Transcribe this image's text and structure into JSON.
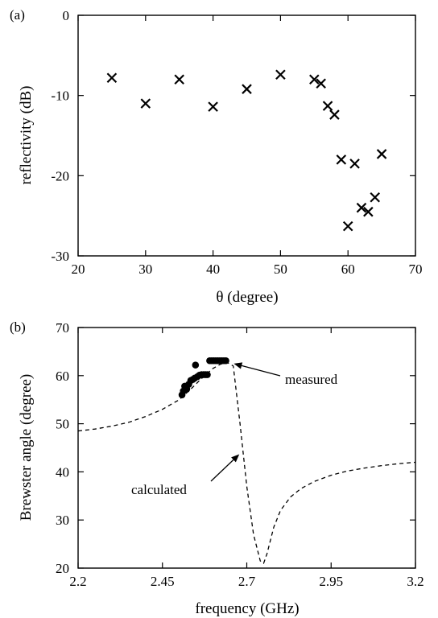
{
  "chart_data": [
    {
      "type": "scatter",
      "panel_label": "(a)",
      "xlabel": "θ  (degree)",
      "ylabel": "reflectivity (dB)",
      "xlim": [
        20,
        70
      ],
      "ylim": [
        -30,
        0
      ],
      "xticks": [
        "20",
        "30",
        "40",
        "50",
        "60",
        "70"
      ],
      "yticks": [
        "0",
        "-10",
        "-20",
        "-30"
      ],
      "marker": "x",
      "grid": false,
      "points": [
        {
          "x": 25,
          "y": -7.8
        },
        {
          "x": 30,
          "y": -11.0
        },
        {
          "x": 35,
          "y": -8.0
        },
        {
          "x": 40,
          "y": -11.4
        },
        {
          "x": 45,
          "y": -9.2
        },
        {
          "x": 50,
          "y": -7.4
        },
        {
          "x": 55,
          "y": -8.0
        },
        {
          "x": 56,
          "y": -8.5
        },
        {
          "x": 57,
          "y": -11.3
        },
        {
          "x": 58,
          "y": -12.4
        },
        {
          "x": 59,
          "y": -18.0
        },
        {
          "x": 60,
          "y": -26.3
        },
        {
          "x": 61,
          "y": -18.5
        },
        {
          "x": 62,
          "y": -24.0
        },
        {
          "x": 63,
          "y": -24.5
        },
        {
          "x": 64,
          "y": -22.7
        },
        {
          "x": 65,
          "y": -17.3
        }
      ]
    },
    {
      "type": "line",
      "panel_label": "(b)",
      "xlabel": "frequency (GHz)",
      "ylabel": "Brewster angle (degree)",
      "xlim": [
        2.2,
        3.2
      ],
      "ylim": [
        20,
        70
      ],
      "xticks": [
        "2.2",
        "2.45",
        "2.7",
        "2.95",
        "3.2"
      ],
      "yticks": [
        "20",
        "30",
        "40",
        "50",
        "60",
        "70"
      ],
      "grid": false,
      "annotations": [
        {
          "text": "measured",
          "target_x": 2.652,
          "target_y": 63
        },
        {
          "text": "calculated",
          "target_x": 2.685,
          "target_y": 44
        }
      ],
      "series": [
        {
          "style": "dashed",
          "x": [
            2.2,
            2.25,
            2.3,
            2.35,
            2.4,
            2.45,
            2.5,
            2.52,
            2.54,
            2.56,
            2.58,
            2.6,
            2.62,
            2.64,
            2.66,
            2.68,
            2.7,
            2.72,
            2.74,
            2.75,
            2.76,
            2.78,
            2.8,
            2.83,
            2.86,
            2.9,
            2.95,
            3.0,
            3.05,
            3.1,
            3.15,
            3.2
          ],
          "y": [
            48.5,
            48.9,
            49.5,
            50.3,
            51.5,
            53.0,
            55.0,
            56.3,
            57.6,
            59.0,
            60.3,
            61.5,
            62.3,
            62.8,
            62.0,
            50.0,
            37.0,
            27.0,
            21.5,
            21.0,
            23.0,
            28.5,
            32.0,
            34.8,
            36.5,
            38.0,
            39.3,
            40.2,
            40.8,
            41.3,
            41.7,
            42.0
          ]
        },
        {
          "style": "dots",
          "points": [
            {
              "x": 2.508,
              "y": 56.0
            },
            {
              "x": 2.512,
              "y": 56.8
            },
            {
              "x": 2.516,
              "y": 57.8
            },
            {
              "x": 2.522,
              "y": 57.2
            },
            {
              "x": 2.528,
              "y": 58.2
            },
            {
              "x": 2.534,
              "y": 59.0
            },
            {
              "x": 2.54,
              "y": 59.2
            },
            {
              "x": 2.546,
              "y": 59.5
            },
            {
              "x": 2.548,
              "y": 62.2
            },
            {
              "x": 2.554,
              "y": 59.8
            },
            {
              "x": 2.56,
              "y": 60.1
            },
            {
              "x": 2.566,
              "y": 60.2
            },
            {
              "x": 2.572,
              "y": 60.2
            },
            {
              "x": 2.578,
              "y": 60.2
            },
            {
              "x": 2.583,
              "y": 60.2
            },
            {
              "x": 2.59,
              "y": 63.1
            },
            {
              "x": 2.596,
              "y": 63.1
            },
            {
              "x": 2.602,
              "y": 63.1
            },
            {
              "x": 2.608,
              "y": 63.1
            },
            {
              "x": 2.614,
              "y": 63.1
            },
            {
              "x": 2.62,
              "y": 63.1
            },
            {
              "x": 2.626,
              "y": 63.1
            },
            {
              "x": 2.632,
              "y": 63.1
            },
            {
              "x": 2.638,
              "y": 63.1
            }
          ]
        }
      ]
    }
  ]
}
